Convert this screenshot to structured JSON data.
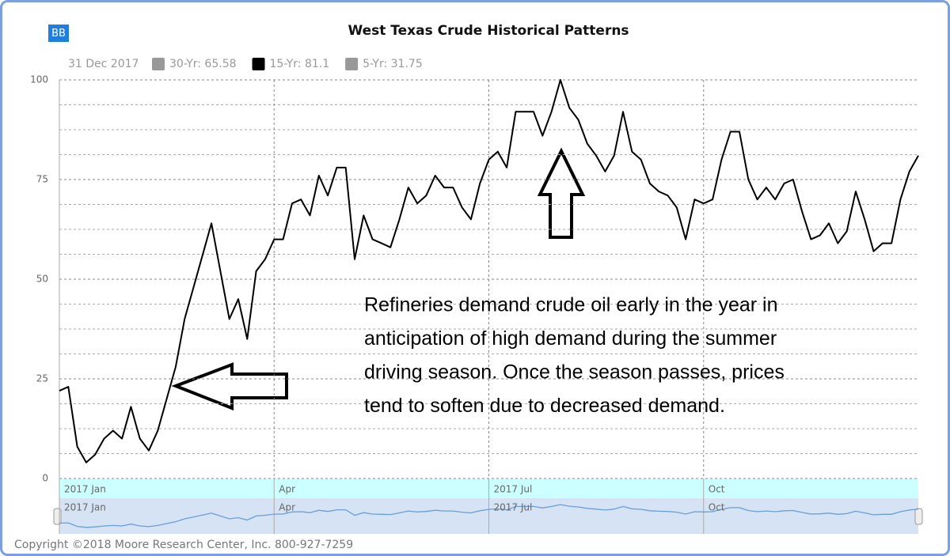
{
  "button": "BB",
  "chart_data": {
    "type": "line",
    "title": "West Texas Crude Historical Patterns",
    "legend_date": "31 Dec 2017",
    "legend_items": [
      {
        "text": "30-Yr: 65.58",
        "color": "#999999"
      },
      {
        "text": "15-Yr: 81.1",
        "color": "#000000"
      },
      {
        "text": "5-Yr: 31.75",
        "color": "#999999"
      }
    ],
    "categories": [
      "2017 Jan",
      null,
      null,
      null,
      null,
      null,
      null,
      null,
      null,
      null,
      null,
      null,
      null,
      null,
      null,
      null,
      null,
      null,
      null,
      null,
      null,
      null,
      null,
      null,
      "Apr",
      null,
      null,
      null,
      null,
      null,
      null,
      null,
      null,
      null,
      null,
      null,
      null,
      null,
      null,
      null,
      null,
      null,
      null,
      null,
      null,
      null,
      null,
      null,
      "2017 Jul",
      null,
      null,
      null,
      null,
      null,
      null,
      null,
      null,
      null,
      null,
      null,
      null,
      null,
      null,
      null,
      null,
      null,
      null,
      null,
      null,
      null,
      null,
      null,
      "Oct",
      null,
      null,
      null,
      null,
      null,
      null,
      null,
      null,
      null,
      null,
      null,
      null,
      null,
      null,
      null,
      null,
      null,
      null,
      null,
      null,
      null,
      null,
      null,
      null
    ],
    "series": [
      {
        "color": "#000000",
        "values": [
          22,
          23,
          8,
          4,
          6,
          10,
          12,
          10,
          18,
          10,
          7,
          12,
          20,
          28,
          40,
          48,
          56,
          64,
          52,
          40,
          45,
          35,
          52,
          55,
          60,
          60,
          69,
          70,
          66,
          76,
          71,
          78,
          78,
          55,
          66,
          60,
          59,
          58,
          65,
          73,
          69,
          71,
          76,
          73,
          73,
          68,
          65,
          74,
          80,
          82,
          78,
          92,
          92,
          92,
          86,
          92,
          100,
          93,
          90,
          84,
          81,
          77,
          81,
          92,
          82,
          80,
          74,
          72,
          71,
          68,
          60,
          70,
          69,
          70,
          80,
          87,
          87,
          75,
          70,
          73,
          70,
          74,
          75,
          67,
          60,
          61,
          64,
          59,
          62,
          72,
          65,
          57,
          59,
          59,
          70,
          77,
          81
        ]
      }
    ],
    "ylim": [
      0,
      100
    ],
    "yticks": [
      0,
      25,
      50,
      75,
      100
    ],
    "y_minor_ticks": [
      6.25,
      12.5,
      18.75,
      31.25,
      37.5,
      43.75,
      56.25,
      62.5,
      68.75,
      81.25,
      87.5,
      93.75
    ],
    "grid": true,
    "annotation": [
      "Refineries demand crude oil early in the year in",
      "anticipation of high demand during the summer",
      "driving season. Once the season passes, prices",
      "tend to soften due to decreased demand."
    ],
    "navigator": {
      "labels": [
        "2017 Jan",
        "Apr",
        "2017 Jul",
        "Oct"
      ],
      "color": "#6a9ed8"
    }
  },
  "footer": "Copyright ©2018 Moore Research Center, Inc. 800-927-7259"
}
